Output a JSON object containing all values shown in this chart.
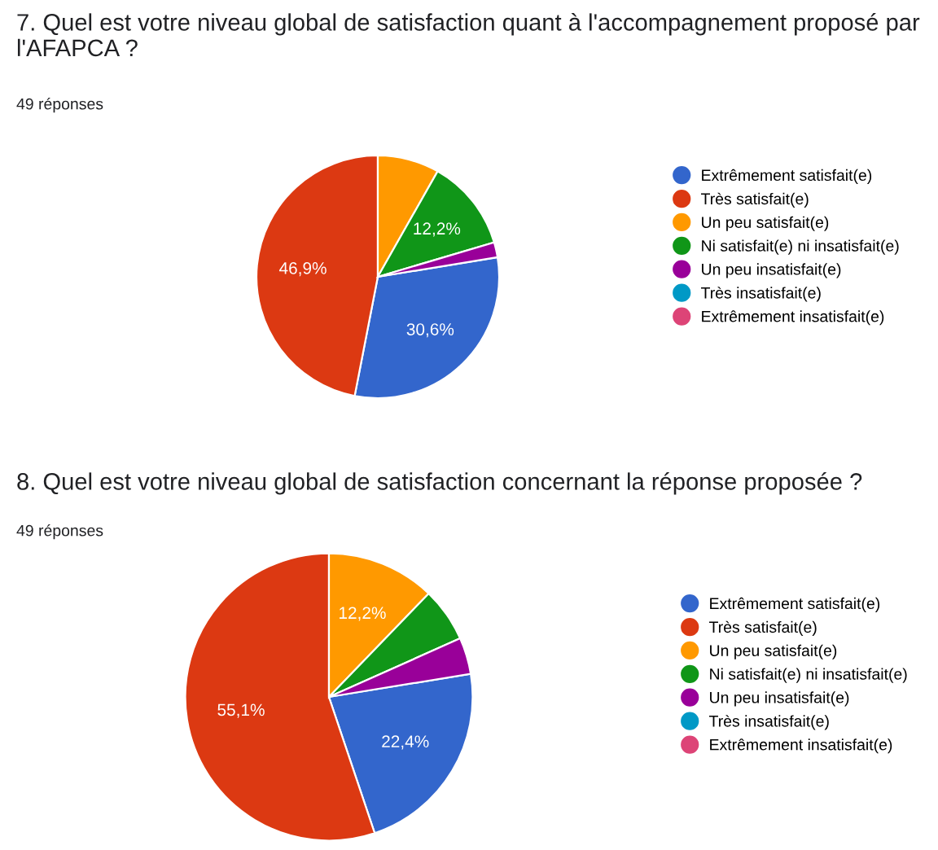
{
  "chart_data": [
    {
      "type": "pie",
      "title": "7. Quel est votre niveau global de satisfaction quant à l'accompagnement proposé par l'AFAPCA ?",
      "subtitle": "49 réponses",
      "categories": [
        "Extrêmement satisfait(e)",
        "Très satisfait(e)",
        "Un peu satisfait(e)",
        "Ni satisfait(e) ni insatisfait(e)",
        "Un peu insatisfait(e)",
        "Très insatisfait(e)",
        "Extrêmement insatisfait(e)"
      ],
      "values": [
        30.6,
        46.9,
        8.2,
        12.2,
        2.0,
        0,
        0
      ],
      "value_labels": [
        "30,6%",
        "46,9%",
        null,
        "12,2%",
        null,
        null,
        null
      ],
      "colors": [
        "#3366cc",
        "#dc3912",
        "#ff9900",
        "#109618",
        "#990099",
        "#0099c6",
        "#dd4477"
      ],
      "legend": "right"
    },
    {
      "type": "pie",
      "title": "8. Quel est votre niveau global de satisfaction concernant la réponse proposée ?",
      "subtitle": "49 réponses",
      "categories": [
        "Extrêmement satisfait(e)",
        "Très satisfait(e)",
        "Un peu satisfait(e)",
        "Ni satisfait(e) ni insatisfait(e)",
        "Un peu insatisfait(e)",
        "Très insatisfait(e)",
        "Extrêmement insatisfait(e)"
      ],
      "values": [
        22.4,
        55.1,
        12.2,
        6.1,
        4.1,
        0,
        0
      ],
      "value_labels": [
        "22,4%",
        "55,1%",
        "12,2%",
        null,
        null,
        null,
        null
      ],
      "colors": [
        "#3366cc",
        "#dc3912",
        "#ff9900",
        "#109618",
        "#990099",
        "#0099c6",
        "#dd4477"
      ],
      "legend": "right"
    }
  ]
}
